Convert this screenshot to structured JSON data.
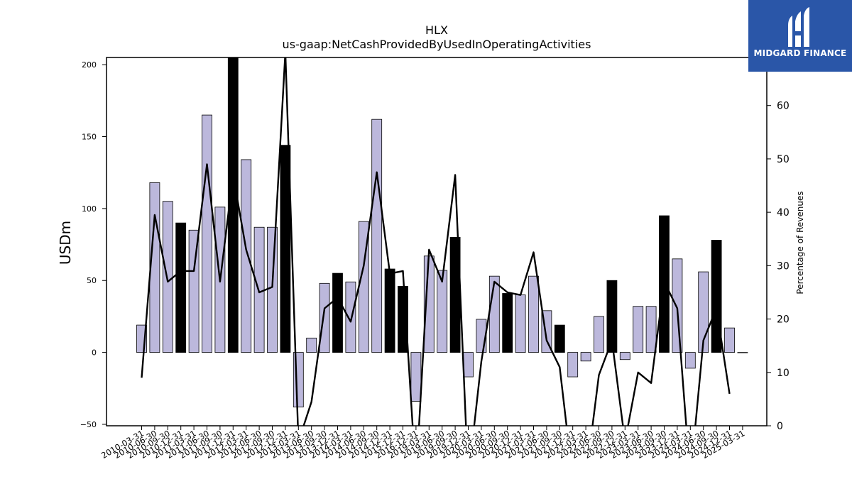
{
  "logo": {
    "brand_name": "MIDGARD FINANCE",
    "bg_color": "#2a56a8"
  },
  "chart_data": {
    "type": "bar",
    "title": "HLX",
    "subtitle": "us-gaap:NetCashProvidedByUsedInOperatingActivities",
    "ylabel": "USDm",
    "y2label": "Percentage of Revenues",
    "ylim": [
      -51,
      205
    ],
    "y2lim": [
      0,
      69
    ],
    "yticks": [
      -50,
      0,
      50,
      100,
      150,
      200
    ],
    "y2ticks": [
      0,
      10,
      20,
      30,
      40,
      50,
      60
    ],
    "bar_color_quarter": "#bcb8dc",
    "bar_color_annual": "#000000",
    "line_color": "#000000",
    "categories": [
      "2010-03-31",
      "2010-06-30",
      "2010-09-30",
      "2010-12-31",
      "2011-03-31",
      "2011-06-30",
      "2011-09-30",
      "2011-12-31",
      "2012-03-31",
      "2012-06-30",
      "2012-09-30",
      "2012-12-31",
      "2013-03-31",
      "2013-06-30",
      "2013-09-30",
      "2013-12-31",
      "2014-03-31",
      "2014-06-30",
      "2014-09-30",
      "2014-12-31",
      "2015-12-31",
      "2016-12-31",
      "2019-03-31",
      "2019-06-30",
      "2019-09-30",
      "2019-12-31",
      "2020-03-31",
      "2020-06-30",
      "2020-09-30",
      "2020-12-31",
      "2021-03-31",
      "2021-06-30",
      "2021-09-30",
      "2021-12-31",
      "2022-03-31",
      "2022-06-30",
      "2022-09-30",
      "2022-12-31",
      "2023-03-31",
      "2023-06-30",
      "2023-09-30",
      "2023-12-31",
      "2024-03-31",
      "2024-06-30",
      "2024-09-30",
      "2024-12-31",
      "2025-03-31"
    ],
    "series": [
      {
        "values": [
          19,
          118,
          105,
          90,
          85,
          165,
          101,
          205,
          134,
          87,
          87,
          144,
          -38,
          10,
          48,
          55,
          49,
          91,
          162,
          58,
          46,
          -34,
          67,
          57,
          80,
          -17,
          23,
          53,
          41,
          40,
          53,
          29,
          19,
          -17,
          -6,
          25,
          50,
          -5,
          32,
          32,
          95,
          65,
          -11,
          56,
          78,
          17,
          0
        ],
        "annual": [
          false,
          false,
          false,
          true,
          false,
          false,
          false,
          true,
          false,
          false,
          false,
          true,
          false,
          false,
          false,
          true,
          false,
          false,
          false,
          true,
          true,
          false,
          false,
          false,
          true,
          false,
          false,
          false,
          true,
          false,
          false,
          false,
          true,
          false,
          false,
          false,
          true,
          false,
          false,
          false,
          true,
          false,
          false,
          false,
          true,
          false,
          false
        ]
      },
      {
        "values": [
          9,
          39.5,
          27,
          29,
          29,
          49,
          27,
          47,
          33,
          25,
          26,
          70,
          -3,
          4.5,
          22,
          24,
          19.5,
          30,
          47.5,
          28.5,
          29,
          -10,
          33,
          27,
          47,
          -10,
          12,
          27,
          25,
          24.5,
          32.5,
          16,
          11,
          -10,
          -10,
          9.5,
          16,
          -3,
          10,
          8,
          27,
          22,
          -10,
          16,
          22,
          6,
          0
        ]
      }
    ]
  }
}
